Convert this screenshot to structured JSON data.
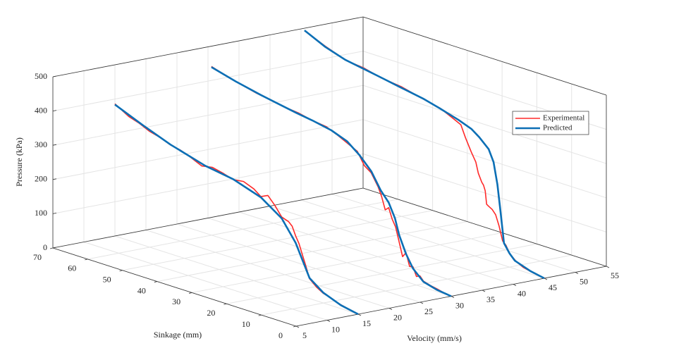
{
  "chart_data": {
    "type": "line3d",
    "xlabel": "Velocity (mm/s)",
    "ylabel": "Sinkage (mm)",
    "zlabel": "Pressure (kPa)",
    "xlim": [
      5,
      55
    ],
    "xticks": [
      5,
      10,
      15,
      20,
      25,
      30,
      35,
      40,
      45,
      50,
      55
    ],
    "ylim": [
      0,
      70
    ],
    "yticks": [
      0,
      10,
      20,
      30,
      40,
      50,
      60,
      70
    ],
    "zlim": [
      0,
      500
    ],
    "zticks": [
      0,
      100,
      200,
      300,
      400,
      500
    ],
    "grid": true,
    "legend": "east",
    "series": [
      {
        "name": "Experimental",
        "color": "#ff2a2a",
        "curves": [
          {
            "x": 15,
            "y": [
              0,
              2,
              4,
              6,
              8,
              10,
              12,
              14,
              15,
              16,
              17,
              18,
              19,
              20,
              22,
              24,
              26,
              28,
              30,
              33,
              36,
              39,
              42,
              45,
              48,
              51,
              54,
              57,
              60,
              63,
              66,
              70
            ],
            "z": [
              0,
              4,
              9,
              14,
              22,
              28,
              40,
              58,
              90,
              120,
              150,
              170,
              195,
              205,
              212,
              240,
              262,
              252,
              268,
              280,
              276,
              285,
              292,
              286,
              300,
              312,
              318,
              330,
              338,
              352,
              362,
              386
            ]
          },
          {
            "x": 30,
            "y": [
              0,
              2,
              4,
              6,
              8,
              9,
              10,
              11,
              12,
              13,
              14,
              15,
              16,
              17,
              18,
              19,
              20,
              21,
              23,
              25,
              27,
              30,
              33,
              36,
              40,
              44,
              48,
              52,
              56,
              60,
              64,
              69
            ],
            "z": [
              0,
              3,
              8,
              12,
              18,
              30,
              25,
              50,
              48,
              85,
              70,
              110,
              150,
              170,
              200,
              190,
              225,
              250,
              285,
              300,
              335,
              350,
              365,
              378,
              383,
              392,
              396,
              404,
              410,
              420,
              430,
              446
            ]
          },
          {
            "x": 45,
            "y": [
              0,
              3,
              6,
              8,
              10,
              11,
              12,
              12.5,
              13,
              14,
              15,
              16,
              16.6,
              17,
              17.5,
              18,
              19,
              19.7,
              21,
              22.7,
              24,
              26,
              30,
              35,
              41,
              47,
              52,
              57,
              63,
              69
            ],
            "z": [
              0,
              5,
              12,
              22,
              40,
              60,
              70,
              90,
              110,
              140,
              152,
              158,
              162,
              200,
              215,
              222,
              245,
              275,
              300,
              337,
              370,
              380,
              399,
              410,
              425,
              432,
              445,
              450,
              472,
              498
            ]
          }
        ]
      },
      {
        "name": "Predicted",
        "color": "#0c6fb5",
        "curves": [
          {
            "x": 15,
            "y": [
              0,
              5,
              10,
              14,
              18,
              22,
              28,
              36,
              44,
              54,
              62,
              70
            ],
            "z": [
              0,
              10,
              30,
              60,
              150,
              208,
              250,
              277,
              290,
              319,
              350,
              384
            ]
          },
          {
            "x": 30,
            "y": [
              0,
              4,
              8,
              11,
              13,
              15,
              16.2,
              18,
              20.3,
              23,
              26.4,
              30,
              34.5,
              40,
              44.6,
              50,
              54.8,
              62,
              69
            ],
            "z": [
              0,
              5,
              16,
              45,
              81,
              130,
              175,
              215,
              243,
              290,
              326,
              355,
              372,
              383,
              390,
              400,
              409,
              425,
              444
            ]
          },
          {
            "x": 45,
            "y": [
              0,
              4,
              8.5,
              10,
              11.6,
              12.6,
              13.5,
              14.6,
              16,
              18.7,
              21,
              24.7,
              30,
              34.9,
              41,
              47,
              52,
              57.2,
              63,
              69
            ],
            "z": [
              0,
              8,
              24,
              40,
              65,
              154,
              230,
              292,
              325,
              351,
              368,
              382,
              398,
              411,
              422,
              433,
              442,
              451,
              470,
              499
            ]
          }
        ]
      }
    ]
  }
}
